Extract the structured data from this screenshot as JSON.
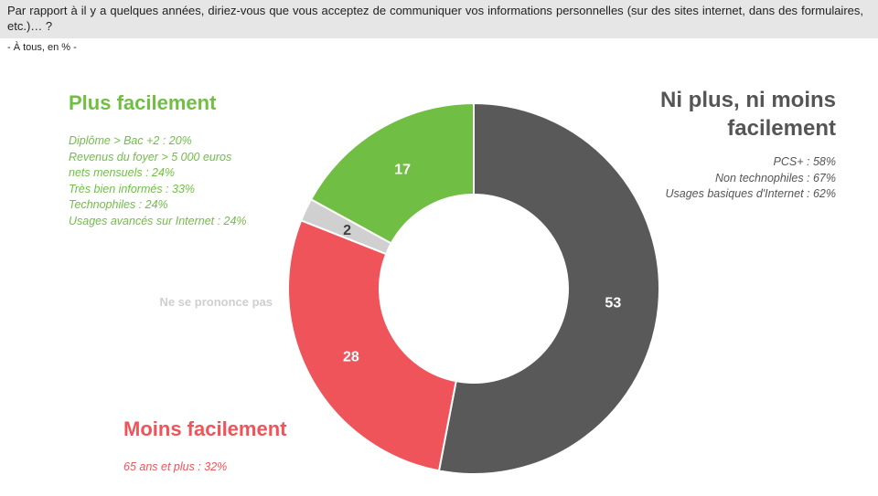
{
  "question": "Par rapport à il y a quelques années, diriez-vous que vous acceptez de communiquer vos informations personnelles (sur des sites internet, dans des formulaires, etc.)… ?",
  "base_note": "- À tous, en % -",
  "chart_data": {
    "type": "pie",
    "donut": true,
    "start": "top, clockwise",
    "slices": [
      {
        "label": "Ni plus, ni moins facilement",
        "value": 53,
        "color": "#595959"
      },
      {
        "label": "Moins facilement",
        "value": 28,
        "color": "#ef545a"
      },
      {
        "label": "Ne se prononce pas",
        "value": 2,
        "color": "#d0d0d0"
      },
      {
        "label": "Plus facilement",
        "value": 17,
        "color": "#70bf44"
      }
    ]
  },
  "groups": {
    "plus": {
      "title": "Plus facilement",
      "details": [
        "Diplôme > Bac +2 : 20%",
        "Revenus du foyer > 5 000 euros",
        "nets mensuels : 24%",
        "Très bien informés : 33%",
        "Technophiles : 24%",
        "Usages avancés sur Internet : 24%"
      ]
    },
    "ni": {
      "title_line1": "Ni plus, ni moins",
      "title_line2": "facilement",
      "details": [
        "PCS+ : 58%",
        "Non technophiles : 67%",
        "Usages basiques d'Internet : 62%"
      ]
    },
    "moins": {
      "title": "Moins facilement",
      "details": [
        "65 ans et plus : 32%"
      ]
    },
    "nsp": {
      "title": "Ne se prononce pas"
    }
  }
}
